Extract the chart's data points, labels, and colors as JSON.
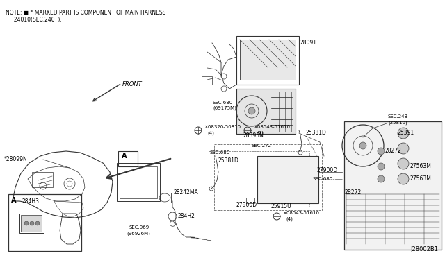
{
  "bg_color": "#ffffff",
  "line_color": "#333333",
  "title_note": "NOTE: ■ * MARKED PART IS COMPONENT OF MAIN HARNESS",
  "title_note2": "     24010(SEC.240  ).",
  "diagram_id": "J28002B1",
  "figsize": [
    6.4,
    3.72
  ],
  "dpi": 100
}
